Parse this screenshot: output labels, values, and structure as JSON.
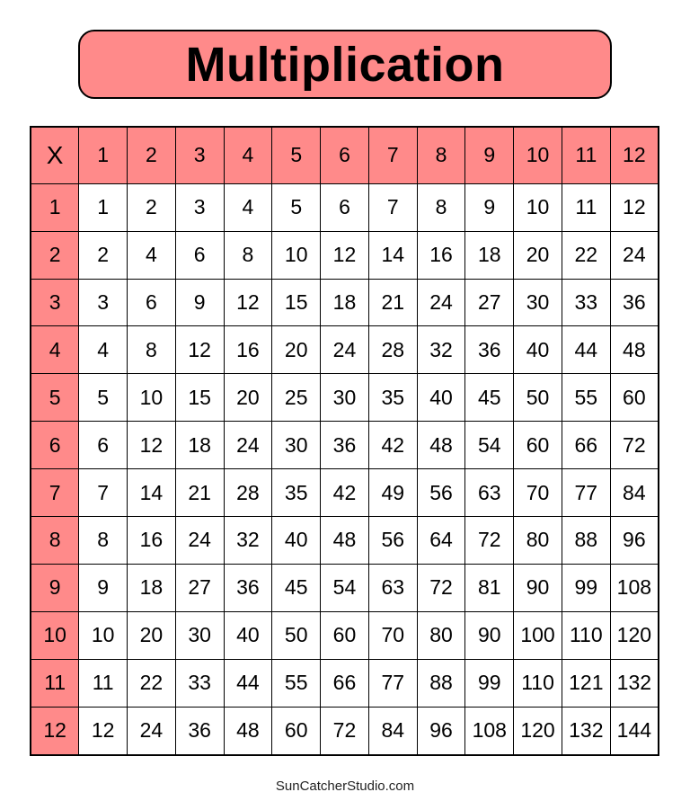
{
  "title": "Multiplication",
  "header_color": "#FF8A8A",
  "table": {
    "corner": "X",
    "column_headers": [
      "1",
      "2",
      "3",
      "4",
      "5",
      "6",
      "7",
      "8",
      "9",
      "10",
      "11",
      "12"
    ],
    "rows": [
      {
        "label": "1",
        "values": [
          "1",
          "2",
          "3",
          "4",
          "5",
          "6",
          "7",
          "8",
          "9",
          "10",
          "11",
          "12"
        ]
      },
      {
        "label": "2",
        "values": [
          "2",
          "4",
          "6",
          "8",
          "10",
          "12",
          "14",
          "16",
          "18",
          "20",
          "22",
          "24"
        ]
      },
      {
        "label": "3",
        "values": [
          "3",
          "6",
          "9",
          "12",
          "15",
          "18",
          "21",
          "24",
          "27",
          "30",
          "33",
          "36"
        ]
      },
      {
        "label": "4",
        "values": [
          "4",
          "8",
          "12",
          "16",
          "20",
          "24",
          "28",
          "32",
          "36",
          "40",
          "44",
          "48"
        ]
      },
      {
        "label": "5",
        "values": [
          "5",
          "10",
          "15",
          "20",
          "25",
          "30",
          "35",
          "40",
          "45",
          "50",
          "55",
          "60"
        ]
      },
      {
        "label": "6",
        "values": [
          "6",
          "12",
          "18",
          "24",
          "30",
          "36",
          "42",
          "48",
          "54",
          "60",
          "66",
          "72"
        ]
      },
      {
        "label": "7",
        "values": [
          "7",
          "14",
          "21",
          "28",
          "35",
          "42",
          "49",
          "56",
          "63",
          "70",
          "77",
          "84"
        ]
      },
      {
        "label": "8",
        "values": [
          "8",
          "16",
          "24",
          "32",
          "40",
          "48",
          "56",
          "64",
          "72",
          "80",
          "88",
          "96"
        ]
      },
      {
        "label": "9",
        "values": [
          "9",
          "18",
          "27",
          "36",
          "45",
          "54",
          "63",
          "72",
          "81",
          "90",
          "99",
          "108"
        ]
      },
      {
        "label": "10",
        "values": [
          "10",
          "20",
          "30",
          "40",
          "50",
          "60",
          "70",
          "80",
          "90",
          "100",
          "110",
          "120"
        ]
      },
      {
        "label": "11",
        "values": [
          "11",
          "22",
          "33",
          "44",
          "55",
          "66",
          "77",
          "88",
          "99",
          "110",
          "121",
          "132"
        ]
      },
      {
        "label": "12",
        "values": [
          "12",
          "24",
          "36",
          "48",
          "60",
          "72",
          "84",
          "96",
          "108",
          "120",
          "132",
          "144"
        ]
      }
    ]
  },
  "footer": "SunCatcherStudio.com"
}
